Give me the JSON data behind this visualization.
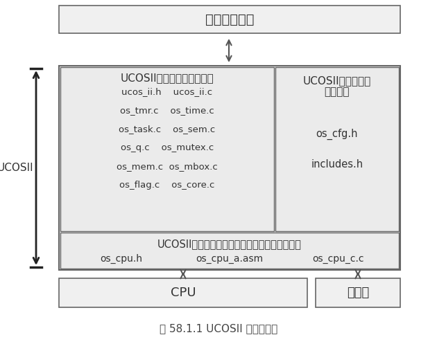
{
  "bg_color": "#ffffff",
  "border_color": "#666666",
  "text_color": "#333333",
  "title": "用户应用程序",
  "ucosii_label": "UCOSII",
  "box1_title": "UCOSII与处理器无关的代码",
  "box1_lines": [
    "ucos_ii.h    ucos_ii.c",
    "os_tmr.c    os_time.c",
    "os_task.c    os_sem.c",
    "os_q.c    os_mutex.c",
    "os_mem.c  os_mbox.c",
    "os_flag.c    os_core.c"
  ],
  "box2_title_line1": "UCOSII与应用程序",
  "box2_title_line2": "相关代码",
  "box2_lines": [
    "os_cfg.h",
    "includes.h"
  ],
  "box3_title": "UCOSII与处理器相关的代码（移植时需要修改）",
  "box3_items": [
    "os_cpu.h",
    "os_cpu_a.asm",
    "os_cpu_c.c"
  ],
  "cpu_label": "CPU",
  "timer_label": "定时器",
  "caption": "图 58.1.1 UCOSII 体系结构图"
}
